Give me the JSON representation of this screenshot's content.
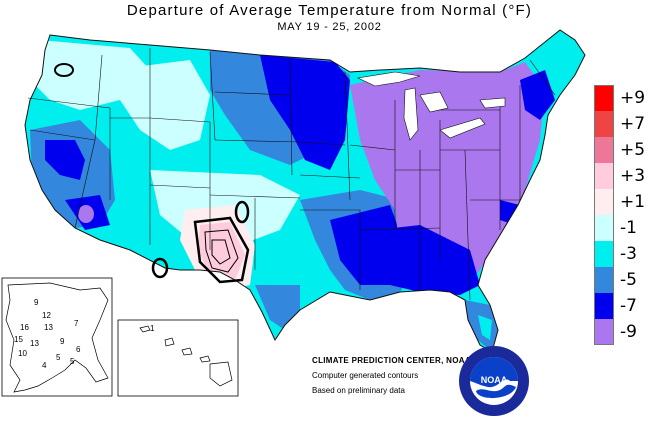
{
  "map": {
    "title": "Departure of Average Temperature from Normal (°F)",
    "subtitle": "MAY 19 - 25, 2002",
    "region": "Contiguous United States, Alaska and Hawaii",
    "variable": "Departure of average temperature from normal",
    "unit": "°F"
  },
  "legend": {
    "items": [
      {
        "label": "+9",
        "color": "#ff0000"
      },
      {
        "label": "+7",
        "color": "#ee4444"
      },
      {
        "label": "+5",
        "color": "#ee7799"
      },
      {
        "label": "+3",
        "color": "#ffccdd"
      },
      {
        "label": "+1",
        "color": "#ffeef0"
      },
      {
        "label": "-1",
        "color": "#ccffff"
      },
      {
        "label": "-3",
        "color": "#00eeee"
      },
      {
        "label": "-5",
        "color": "#3388dd"
      },
      {
        "label": "-7",
        "color": "#0000ee"
      },
      {
        "label": "-9",
        "color": "#aa77ee"
      }
    ]
  },
  "credits": {
    "center": "CLIMATE PREDICTION CENTER, NOAA",
    "line1": "Computer generated contours",
    "line2": "Based on preliminary data"
  },
  "logo": {
    "text": "NOAA",
    "icon": "noaa-logo-icon"
  },
  "alaska_labels": [
    "9",
    "16",
    "12",
    "13",
    "7",
    "15",
    "13",
    "9",
    "10",
    "5",
    "4",
    "5",
    "6"
  ],
  "hawaii_labels": [
    "1"
  ]
}
